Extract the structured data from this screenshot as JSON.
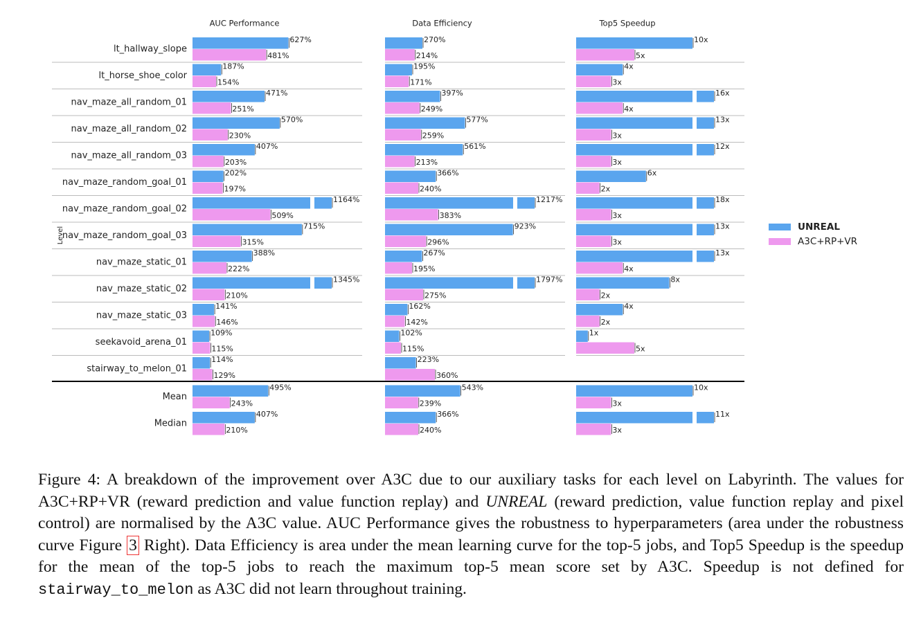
{
  "chart_data": [
    {
      "type": "bar",
      "title": "AUC Performance",
      "y_label": "Level",
      "categories": [
        "lt_hallway_slope",
        "lt_horse_shoe_color",
        "nav_maze_all_random_01",
        "nav_maze_all_random_02",
        "nav_maze_all_random_03",
        "nav_maze_random_goal_01",
        "nav_maze_random_goal_02",
        "nav_maze_random_goal_03",
        "nav_maze_static_01",
        "nav_maze_static_02",
        "nav_maze_static_03",
        "seekavoid_arena_01",
        "stairway_to_melon_01",
        "Mean",
        "Median"
      ],
      "xlim": [
        0,
        770
      ],
      "series": [
        {
          "name": "UNREAL",
          "color": "#5aa5ee",
          "values": [
            627,
            187,
            471,
            570,
            407,
            202,
            1164,
            715,
            388,
            1345,
            141,
            109,
            114,
            495,
            407
          ],
          "value_labels": [
            "627%",
            "187%",
            "471%",
            "570%",
            "407%",
            "202%",
            "1164%",
            "715%",
            "388%",
            "1345%",
            "141%",
            "109%",
            "114%",
            "495%",
            "407%"
          ]
        },
        {
          "name": "A3C+RP+VR",
          "color": "#ee99ee",
          "values": [
            481,
            154,
            251,
            230,
            203,
            197,
            509,
            315,
            222,
            210,
            146,
            115,
            129,
            243,
            210
          ],
          "value_labels": [
            "481%",
            "154%",
            "251%",
            "230%",
            "203%",
            "197%",
            "509%",
            "315%",
            "222%",
            "210%",
            "146%",
            "115%",
            "129%",
            "243%",
            "210%"
          ]
        }
      ]
    },
    {
      "type": "bar",
      "title": "Data Efficiency",
      "xlim": [
        0,
        925
      ],
      "series": [
        {
          "color": "#5aa5ee",
          "values": [
            270,
            195,
            397,
            577,
            561,
            366,
            1217,
            923,
            267,
            1797,
            162,
            102,
            223,
            543,
            366
          ],
          "value_labels": [
            "270%",
            "195%",
            "397%",
            "577%",
            "561%",
            "366%",
            "1217%",
            "923%",
            "267%",
            "1797%",
            "162%",
            "102%",
            "223%",
            "543%",
            "366%"
          ]
        },
        {
          "color": "#ee99ee",
          "values": [
            214,
            171,
            249,
            259,
            213,
            240,
            383,
            296,
            195,
            275,
            142,
            115,
            360,
            239,
            240
          ],
          "value_labels": [
            "214%",
            "171%",
            "249%",
            "259%",
            "213%",
            "240%",
            "383%",
            "296%",
            "195%",
            "275%",
            "142%",
            "115%",
            "360%",
            "239%",
            "240%"
          ]
        }
      ]
    },
    {
      "type": "bar",
      "title": "Top5 Speedup",
      "xlim": [
        0,
        10
      ],
      "series": [
        {
          "color": "#5aa5ee",
          "values": [
            10,
            4,
            16,
            13,
            12,
            6,
            18,
            13,
            13,
            8,
            4,
            1,
            null,
            10,
            11
          ],
          "value_labels": [
            "10x",
            "4x",
            "16x",
            "13x",
            "12x",
            "6x",
            "18x",
            "13x",
            "13x",
            "8x",
            "4x",
            "1x",
            null,
            "10x",
            "11x"
          ]
        },
        {
          "color": "#ee99ee",
          "values": [
            5,
            3,
            4,
            3,
            3,
            2,
            3,
            3,
            4,
            2,
            2,
            5,
            null,
            3,
            3
          ],
          "value_labels": [
            "5x",
            "3x",
            "4x",
            "3x",
            "3x",
            "2x",
            "3x",
            "3x",
            "4x",
            "2x",
            "2x",
            "5x",
            null,
            "3x",
            "3x"
          ]
        }
      ]
    }
  ],
  "caption": {
    "label": "Figure 4:",
    "text_1": " A breakdown of the improvement over A3C due to our auxiliary tasks for each level on Labyrinth. The values for A3C+RP+VR (reward prediction and value function replay) and ",
    "emphasis": "UNREAL",
    "text_2": " (reward prediction, value function replay and pixel control) are normalised by the A3C value. AUC Performance gives the robustness to hyperparameters (area under the robustness curve Figure ",
    "ref": "3",
    "text_3": " Right). Data Efficiency is area under the mean learning curve for the top-5 jobs, and Top5 Speedup is the speedup for the mean of the top-5 jobs to reach the maximum top-5 mean score set by A3C. Speedup is not defined for ",
    "code": "stairway_to_melon",
    "text_4": " as A3C did not learn throughout training."
  }
}
